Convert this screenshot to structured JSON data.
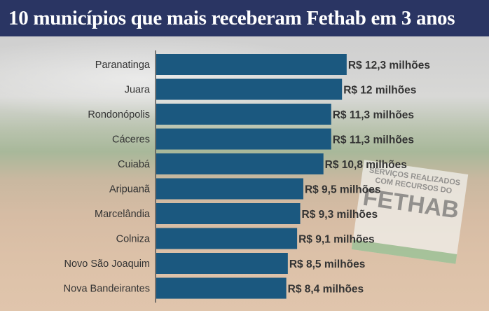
{
  "title": "10 municípios que mais receberam Fethab em 3 anos",
  "background_sign": {
    "line1": "SERVIÇOS REALIZADOS",
    "line2": "COM RECURSOS DO",
    "line3": "FETHAB"
  },
  "colors": {
    "title_bar": "#2a3563",
    "bar": "#1b587f",
    "label_text": "#333333"
  },
  "chart_data": {
    "type": "bar",
    "orientation": "horizontal",
    "title": "10 municípios que mais receberam Fethab em 3 anos",
    "categories": [
      "Paranatinga",
      "Juara",
      "Rondonópolis",
      "Cáceres",
      "Cuiabá",
      "Aripuanã",
      "Marcelândia",
      "Colniza",
      "Novo São Joaquim",
      "Nova Bandeirantes"
    ],
    "values": [
      12.3,
      12,
      11.3,
      11.3,
      10.8,
      9.5,
      9.3,
      9.1,
      8.5,
      8.4
    ],
    "data_labels": [
      "R$ 12,3 milhões",
      "R$ 12 milhões",
      "R$ 11,3 milhões",
      "R$ 11,3 milhões",
      "R$ 10,8 milhões",
      "R$ 9,5 milhões",
      "R$ 9,3 milhões",
      "R$ 9,1 milhões",
      "R$ 8,5 milhões",
      "R$ 8,4 milhões"
    ],
    "unit": "R$ milhões",
    "grid": false,
    "legend": "none"
  }
}
